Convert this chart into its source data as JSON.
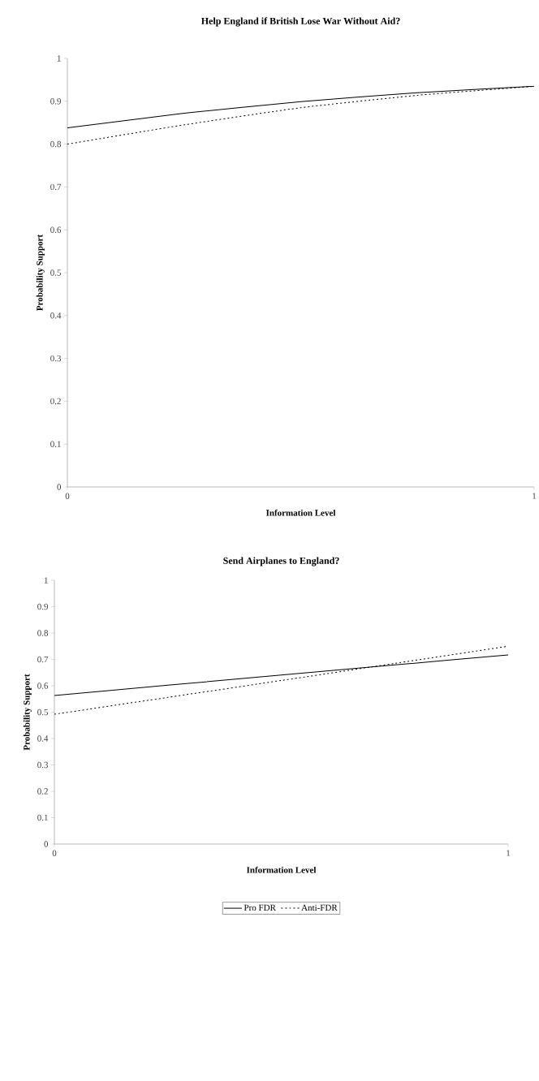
{
  "chart_data": [
    {
      "type": "line",
      "title": "Help England if British Lose War Without Aid?",
      "xlabel": "Information Level",
      "ylabel": "Probability Support",
      "x": [
        0,
        0.25,
        0.5,
        0.75,
        1
      ],
      "series": [
        {
          "color": "#000000",
          "line_style": "solid",
          "values": [
            0.838,
            0.872,
            0.899,
            0.92,
            0.935
          ]
        },
        {
          "color": "#000000",
          "line_style": "dotted",
          "values": [
            0.8,
            0.845,
            0.885,
            0.914,
            0.935
          ]
        }
      ],
      "xlim": [
        0,
        1
      ],
      "xticks": [
        0,
        1
      ],
      "ylim": [
        0,
        1
      ],
      "yticks": [
        0,
        0.1,
        0.2,
        0.3,
        0.4,
        0.5,
        0.6,
        0.7,
        0.8,
        0.9,
        1
      ],
      "grid": false,
      "marker": "none"
    },
    {
      "type": "line",
      "title": "Send Airplanes to England?",
      "xlabel": "Information Level",
      "ylabel": "Probability Support",
      "x": [
        0,
        0.25,
        0.5,
        0.75,
        1
      ],
      "series": [
        {
          "name": "Pro FDR",
          "color": "#000000",
          "line_style": "solid",
          "values": [
            0.563,
            0.602,
            0.641,
            0.679,
            0.717
          ]
        },
        {
          "name": "Anti-FDR",
          "color": "#000000",
          "line_style": "dotted",
          "values": [
            0.492,
            0.556,
            0.62,
            0.685,
            0.75
          ]
        }
      ],
      "xlim": [
        0,
        1
      ],
      "xticks": [
        0,
        1
      ],
      "ylim": [
        0,
        1
      ],
      "yticks": [
        0,
        0.1,
        0.2,
        0.3,
        0.4,
        0.5,
        0.6,
        0.7,
        0.8,
        0.9,
        1
      ],
      "grid": false,
      "marker": "none",
      "legend": "bottom"
    }
  ]
}
